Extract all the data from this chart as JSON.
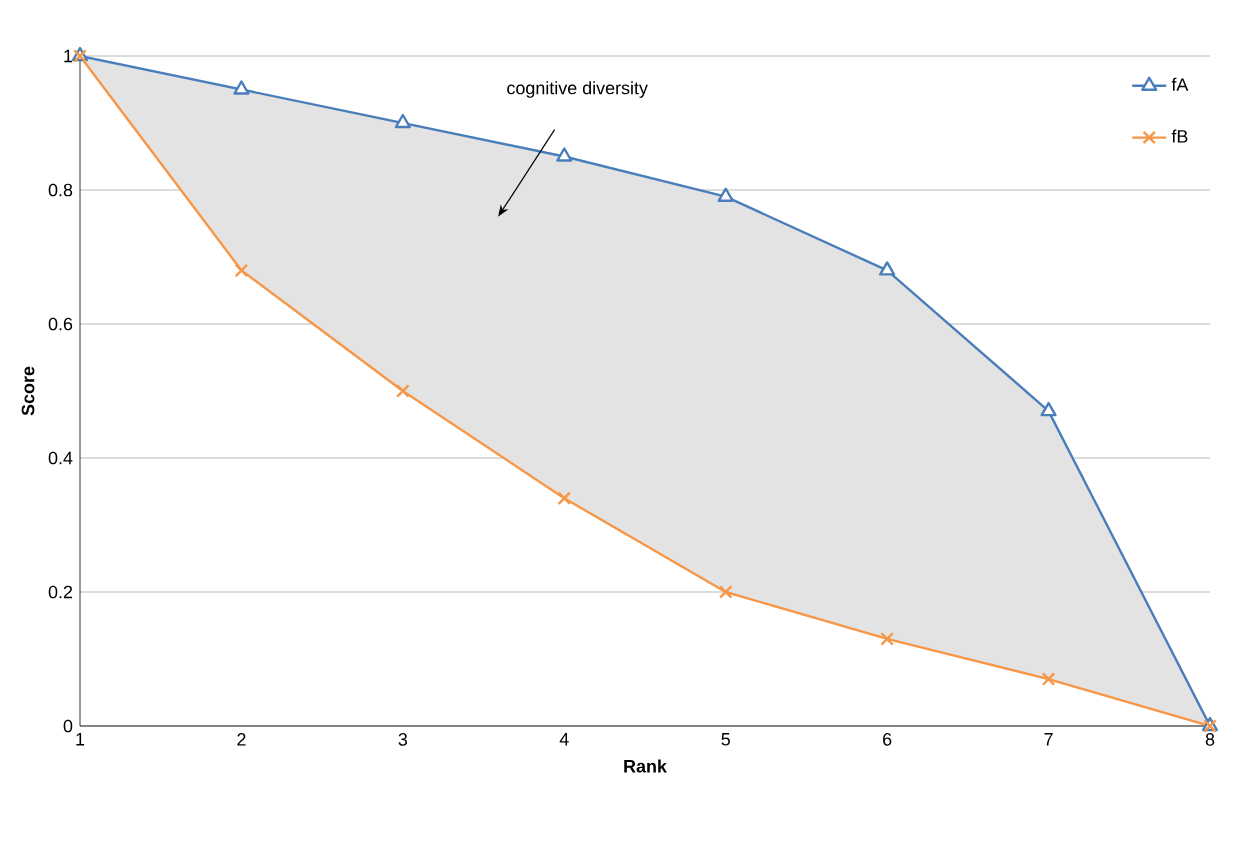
{
  "chart_data": {
    "type": "line",
    "xlabel": "Rank",
    "ylabel": "Score",
    "x": [
      1,
      2,
      3,
      4,
      5,
      6,
      7,
      8
    ],
    "series": [
      {
        "name": "fA",
        "color": "#4a7ebb",
        "marker": "triangle",
        "values": [
          1,
          0.95,
          0.9,
          0.85,
          0.79,
          0.68,
          0.47,
          0
        ],
        "lower": [
          1,
          0.68,
          0.5,
          0.34,
          0.2,
          0.13,
          0.07,
          0
        ],
        "upper": [
          1,
          0.95,
          0.9,
          0.85,
          0.79,
          0.68,
          0.47,
          0
        ]
      },
      {
        "name": "fB",
        "color": "#f79646",
        "marker": "cross",
        "values": [
          1,
          0.68,
          0.5,
          0.34,
          0.2,
          0.13,
          0.07,
          0
        ]
      }
    ],
    "xlim": [
      1,
      8
    ],
    "xticks": [
      1,
      2,
      3,
      4,
      5,
      6,
      7,
      8
    ],
    "ylim": [
      0,
      1
    ],
    "yticks": [
      0,
      0.2,
      0.4,
      0.6,
      0.8,
      1
    ],
    "grid": "y",
    "legend": "top right",
    "annotations": [
      "cognitive diversity"
    ]
  }
}
